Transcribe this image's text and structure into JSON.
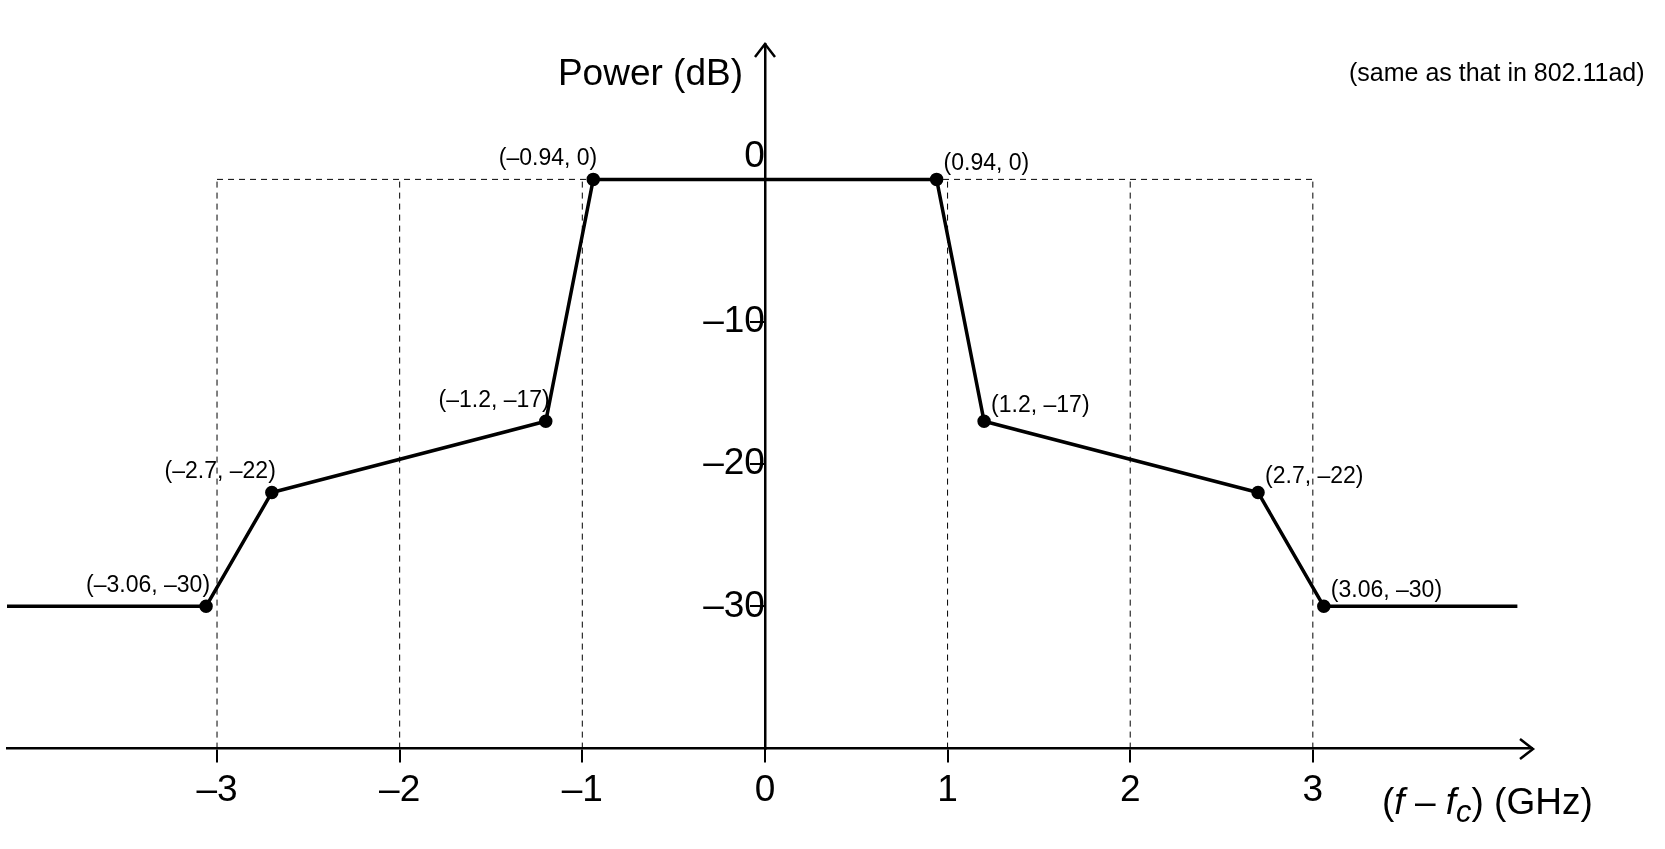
{
  "chart_data": {
    "type": "line",
    "xlabel": "(f – f$_{c}$) (GHz)",
    "ylabel": "Power (dB)",
    "annotations": [
      "(same as that in 802.11ad)"
    ],
    "series": [
      {
        "color": "#000000",
        "x": [
          -4.15,
          -3.06,
          -2.7,
          -1.2,
          -0.94,
          0.94,
          1.2,
          2.7,
          3.06,
          4.12
        ],
        "values": [
          -30,
          -30,
          -22,
          -17,
          0,
          0,
          -17,
          -22,
          -30,
          -30
        ],
        "value_labels": [
          null,
          "(–3.06, –30)",
          "(–2.7, –22)",
          "(–1.2, –17)",
          "(–0.94, 0)",
          "(0.94, 0)",
          "(1.2, –17)",
          "(2.7, –22)",
          "(3.06, –30)",
          null
        ]
      }
    ],
    "xlim": [
      -4.15,
      4.2
    ],
    "ylim": [
      -40,
      9.5
    ],
    "xticks": [
      {
        "value": -3,
        "label": "–3"
      },
      {
        "value": -2,
        "label": "–2"
      },
      {
        "value": -1,
        "label": "–1"
      },
      0,
      1,
      2,
      3
    ],
    "yticks": [
      0,
      {
        "value": -10,
        "label": "–10"
      },
      {
        "value": -20,
        "label": "–20"
      },
      {
        "value": -30,
        "label": "–30"
      }
    ],
    "ref_lines": [
      {
        "axis": "x",
        "value": -3,
        "line_style": "dashed"
      },
      {
        "axis": "x",
        "value": -2,
        "line_style": "dashed"
      },
      {
        "axis": "x",
        "value": -1,
        "line_style": "dashed"
      },
      {
        "axis": "x",
        "value": 1,
        "line_style": "dashed"
      },
      {
        "axis": "x",
        "value": 2,
        "line_style": "dashed"
      },
      {
        "axis": "x",
        "value": 3,
        "line_style": "dashed"
      },
      {
        "axis": "y",
        "value": 0,
        "line_style": "dashed"
      }
    ],
    "grid": false,
    "legend": false,
    "marker": "circle",
    "line_style": "solid"
  }
}
